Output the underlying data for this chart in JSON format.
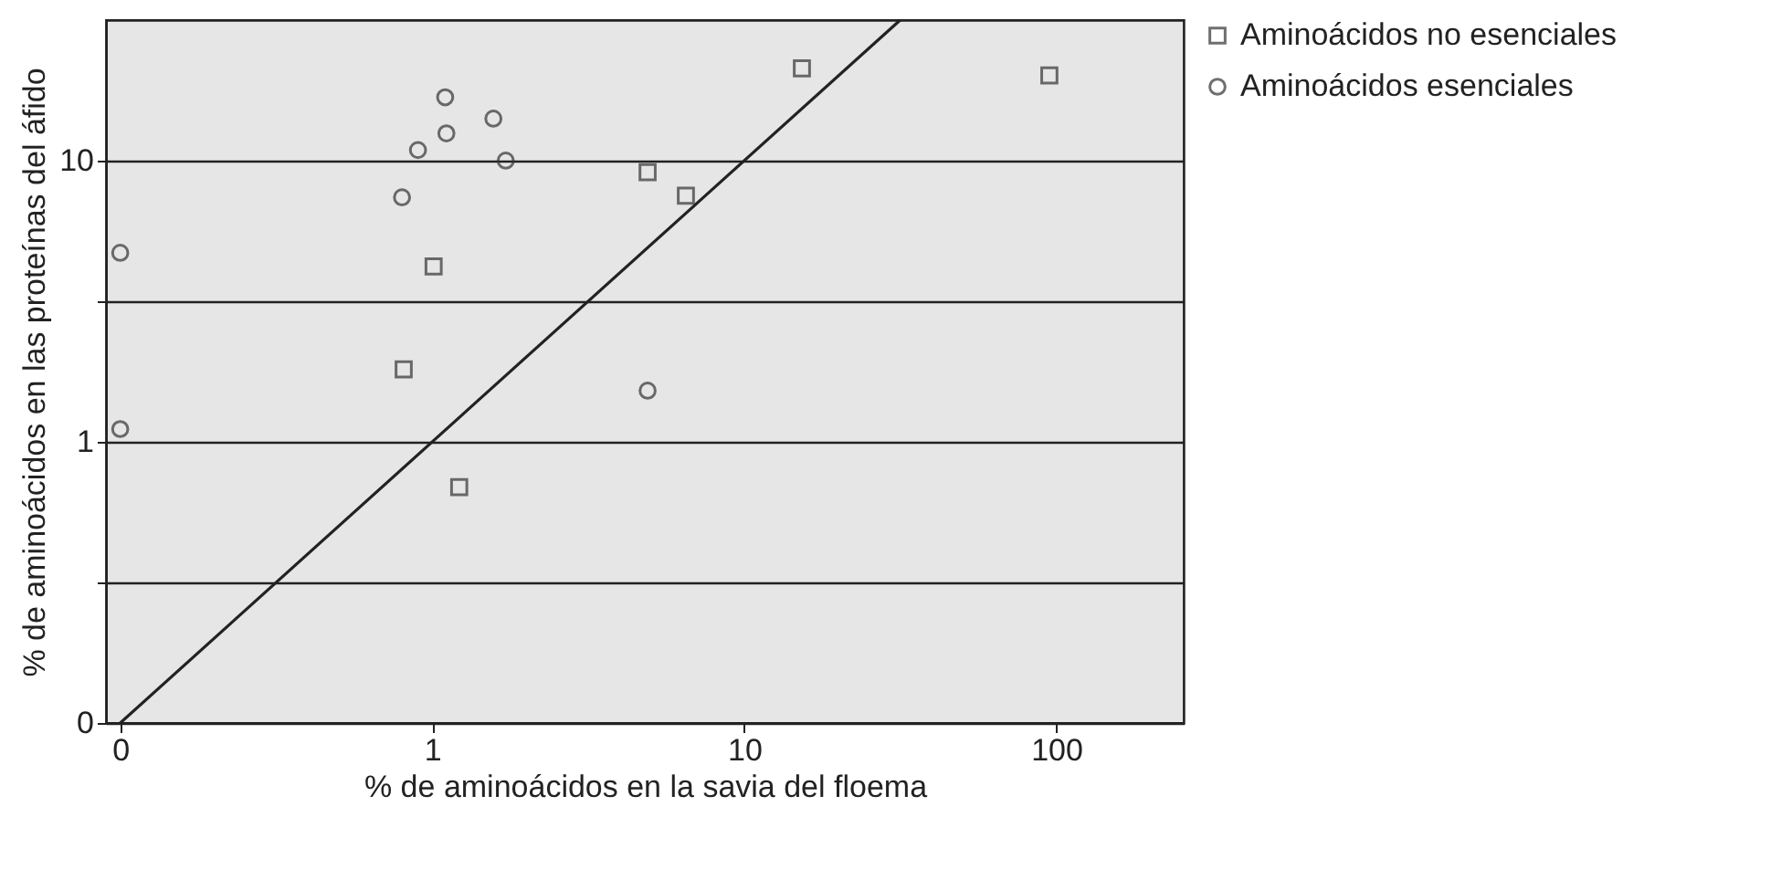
{
  "chart_data": {
    "type": "scatter",
    "xlabel": "% de aminoácidos en la savia del floema",
    "ylabel": "% de aminoácidos en las proteínas del áfido",
    "log": "xy",
    "xlim": [
      0.09,
      256
    ],
    "ylim": [
      0.1,
      31.6
    ],
    "xticks": [
      {
        "value": 0.1,
        "label": "0"
      },
      1,
      10,
      100
    ],
    "yticks": [
      {
        "value": 0.1,
        "label": "0"
      },
      {
        "value": 0.316,
        "label": null
      },
      1,
      {
        "value": 3.16,
        "label": null
      },
      10
    ],
    "grid": "y",
    "legend": "right",
    "series": [
      {
        "name": "Aminoácidos no esenciales",
        "color": "#333333",
        "marker": "square",
        "x": [
          0.81,
          1.01,
          1.22,
          4.9,
          6.5,
          15.3,
          95
        ],
        "values": [
          1.81,
          4.2,
          0.69,
          9.1,
          7.5,
          21.3,
          20.1
        ]
      },
      {
        "name": "Aminoácidos esenciales",
        "color": "#333333",
        "marker": "circle",
        "x": [
          0.1,
          0.1,
          0.8,
          0.9,
          1.1,
          1.11,
          1.57,
          1.72,
          4.9
        ],
        "values": [
          4.7,
          1.11,
          7.4,
          10.9,
          16.8,
          12.5,
          14.1,
          10,
          1.52
        ]
      },
      {
        "type": "line",
        "color": "#222222",
        "x": [
          0.1,
          31.6
        ],
        "values": [
          0.1,
          31.6
        ]
      }
    ]
  }
}
